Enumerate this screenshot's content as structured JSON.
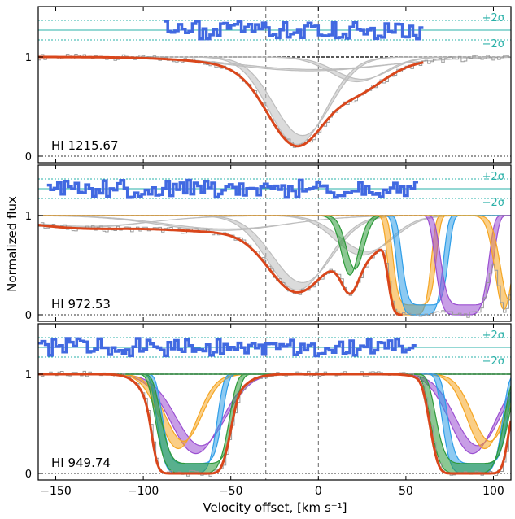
{
  "figure": {
    "ylabel": "Normalized flux",
    "xlabel": "Velocity offset, [km s⁻¹]",
    "xticks": [
      -150,
      -100,
      -50,
      0,
      50,
      100
    ],
    "xtick_labels": [
      "−150",
      "−100",
      "−50",
      "0",
      "50",
      "100"
    ]
  },
  "colors": {
    "data": "#000000",
    "data_masked": "#9a9a9a",
    "model_total": "#d9461b",
    "residual": "#4169e1",
    "sigma_lines": "#2ab0a8",
    "band_gray": "#bdbdbd",
    "band_orange": "#f5a623",
    "band_purple": "#9b4fd1",
    "band_green": "#2e9a3a",
    "band_blue": "#2f9ee8",
    "vline": "#666666"
  },
  "chart_data": [
    {
      "type": "line",
      "panel_label": "HI 1215.67",
      "x_range": [
        -160,
        110
      ],
      "yticks": [
        0,
        1
      ],
      "residual_labels": [
        "+2σ",
        "−2σ"
      ],
      "vlines": [
        -30,
        0
      ],
      "components": [
        {
          "color_key": "band_gray",
          "center": -12,
          "width": 23,
          "depth": 0.88
        },
        {
          "color_key": "band_gray",
          "center": 22,
          "width": 22,
          "depth": 0.25
        },
        {
          "color_key": "band_gray",
          "center": -5,
          "width": 60,
          "depth": 0.14
        }
      ],
      "residual_x_range": [
        -88,
        58
      ],
      "fit_x_range": [
        -160,
        60
      ]
    },
    {
      "type": "line",
      "panel_label": "HI 972.53",
      "x_range": [
        -160,
        110
      ],
      "yticks": [
        0,
        1
      ],
      "residual_labels": [
        "+2σ",
        "−2σ"
      ],
      "vlines": [
        -30,
        0
      ],
      "components": [
        {
          "color_key": "band_gray",
          "center": -12,
          "width": 24,
          "depth": 0.75
        },
        {
          "color_key": "band_gray",
          "center": 25,
          "width": 22,
          "depth": 0.4
        },
        {
          "color_key": "band_gray",
          "center": -55,
          "width": 50,
          "depth": 0.15
        },
        {
          "color_key": "band_gray",
          "center": -135,
          "width": 50,
          "depth": 0.12
        },
        {
          "color_key": "band_green",
          "center": 18,
          "width": 7,
          "depth": 0.6
        },
        {
          "color_key": "band_orange",
          "center": 52,
          "width": 13,
          "depth": 1.0,
          "flat": true
        },
        {
          "color_key": "band_blue",
          "center": 58,
          "width": 14,
          "depth": 1.0,
          "flat": true
        },
        {
          "color_key": "band_purple",
          "center": 82,
          "width": 16,
          "depth": 1.0,
          "flat": true
        },
        {
          "color_key": "band_orange",
          "center": 106,
          "width": 7,
          "depth": 0.95
        }
      ],
      "residual_x_range": [
        -155,
        55
      ],
      "fit_x_range": [
        -160,
        48
      ]
    },
    {
      "type": "line",
      "panel_label": "HI 949.74",
      "x_range": [
        -160,
        110
      ],
      "yticks": [
        0,
        1
      ],
      "residual_labels": [
        "+2σ",
        "−2σ"
      ],
      "vlines": [
        -30,
        0
      ],
      "components": [
        {
          "color_key": "band_purple",
          "center": -70,
          "width": 20,
          "depth": 0.8
        },
        {
          "color_key": "band_orange",
          "center": -80,
          "width": 15,
          "depth": 0.75
        },
        {
          "color_key": "band_blue",
          "center": -75,
          "width": 18,
          "depth": 1.0,
          "flat": true
        },
        {
          "color_key": "band_green",
          "center": -72,
          "width": 22,
          "depth": 1.0,
          "flat": true
        },
        {
          "color_key": "band_purple",
          "center": 88,
          "width": 18,
          "depth": 0.8
        },
        {
          "color_key": "band_orange",
          "center": 95,
          "width": 14,
          "depth": 0.75
        },
        {
          "color_key": "band_blue",
          "center": 88,
          "width": 18,
          "depth": 1.0,
          "flat": true
        },
        {
          "color_key": "band_green",
          "center": 85,
          "width": 22,
          "depth": 1.0,
          "flat": true
        }
      ],
      "residual_x_range": [
        -160,
        55
      ],
      "fit_x_range": [
        -160,
        110
      ]
    }
  ]
}
